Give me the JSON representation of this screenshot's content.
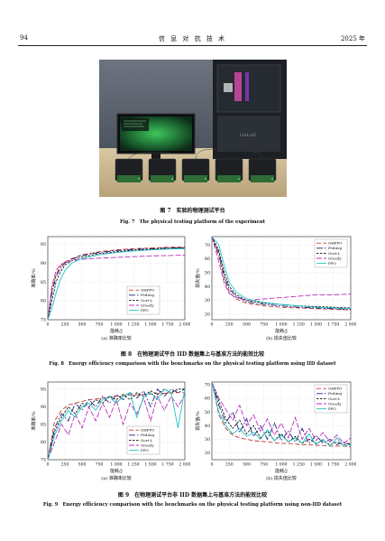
{
  "header": {
    "page_number": "94",
    "journal": "信 息 对 抗 技 术",
    "year": "2025 年"
  },
  "fig7": {
    "caption_zh": "图 7　实验的物理测试平台",
    "caption_en": "Fig. 7　The physical testing platform of the experiment",
    "photo_label": "GALAX"
  },
  "fig8": {
    "caption_zh": "图 8　在物理测试平台 IID 数据集上与基准方法的能效比较",
    "caption_en": "Fig. 8　Energy efficiency comparison with the benchmarks on the physical testing platform using IID dataset",
    "sub_a": "(a) 准确率比较",
    "sub_b": "(b) 损失值比较"
  },
  "fig9": {
    "caption_zh": "图 9　在物理测试平台非 IID 数据集上与基准方法的能效比较",
    "caption_en": "Fig. 9　Energy efficiency comparison with the benchmarks on the physical testing platform using non-IID dataset",
    "sub_a": "(a) 准确率比较",
    "sub_b": "(b) 损失值比较"
  },
  "legend": [
    {
      "name": "GHPPO",
      "color": "#c0392b",
      "dash": "5,2.5"
    },
    {
      "name": "FedAvg",
      "color": "#1a237e",
      "dash": "7,2,1.5,2"
    },
    {
      "name": "Oort-L",
      "color": "#111111",
      "dash": "2.5,1.5"
    },
    {
      "name": "Greedy",
      "color": "#b832b8",
      "dash": "6,2"
    },
    {
      "name": "PPO",
      "color": "#21c4c4",
      "dash": ""
    }
  ],
  "chart_data": [
    {
      "id": "fig8a",
      "type": "line",
      "xlabel": "能耗/J",
      "ylabel": "准确率/%",
      "xlim": [
        0,
        2000
      ],
      "ylim": [
        75,
        97
      ],
      "xticks": [
        "0",
        "250",
        "500",
        "750",
        "1 000",
        "1 250",
        "1 500",
        "1 750",
        "2 000"
      ],
      "yticks": [
        75,
        80,
        85,
        90,
        95
      ],
      "legend_position": "lower-right",
      "x": [
        0,
        60,
        120,
        180,
        250,
        350,
        500,
        750,
        1000,
        1250,
        1500,
        1750,
        2000
      ],
      "series": [
        {
          "name": "GHPPO",
          "values": [
            75,
            83,
            87,
            89,
            90.3,
            91.2,
            92.2,
            93,
            93.5,
            93.8,
            94,
            94.2,
            94.3
          ]
        },
        {
          "name": "FedAvg",
          "values": [
            75,
            82,
            86.5,
            88.5,
            90,
            91,
            92,
            92.8,
            93.3,
            93.6,
            93.8,
            94,
            94.1
          ]
        },
        {
          "name": "Oort-L",
          "values": [
            75,
            80,
            85,
            87.5,
            89.5,
            90.6,
            91.6,
            92.5,
            93,
            93.4,
            93.7,
            93.9,
            94
          ]
        },
        {
          "name": "Greedy",
          "values": [
            75,
            84,
            88,
            89.5,
            90.2,
            90.6,
            91,
            91.3,
            91.5,
            91.7,
            91.9,
            92,
            92.1
          ]
        },
        {
          "name": "PPO",
          "values": [
            75,
            78,
            82,
            85.5,
            88,
            90,
            91.2,
            92.2,
            92.8,
            93.2,
            93.5,
            93.7,
            93.8
          ]
        }
      ]
    },
    {
      "id": "fig8b",
      "type": "line",
      "xlabel": "能耗/J",
      "ylabel": "损失值/%",
      "xlim": [
        0,
        2000
      ],
      "ylim": [
        16,
        76
      ],
      "xticks": [
        "0",
        "250",
        "500",
        "750",
        "1 000",
        "1 250",
        "1 500",
        "1 750",
        "2 000"
      ],
      "yticks": [
        20,
        30,
        40,
        50,
        60,
        70
      ],
      "legend_position": "top-right",
      "x": [
        0,
        100,
        180,
        250,
        350,
        500,
        750,
        1000,
        1250,
        1500,
        1750,
        2000
      ],
      "series": [
        {
          "name": "GHPPO",
          "values": [
            76,
            62,
            45,
            36,
            31,
            28,
            26,
            25,
            24.5,
            24,
            23.5,
            23
          ]
        },
        {
          "name": "FedAvg",
          "values": [
            76,
            64,
            47,
            38,
            33,
            29,
            27,
            26,
            25,
            24.5,
            24,
            23.5
          ]
        },
        {
          "name": "Oort-L",
          "values": [
            76,
            66,
            50,
            40,
            34,
            30,
            28,
            27,
            26,
            25.5,
            25,
            24.5
          ]
        },
        {
          "name": "Greedy",
          "values": [
            76,
            58,
            42,
            35,
            32,
            30,
            31,
            32,
            33,
            34,
            34,
            34.5
          ]
        },
        {
          "name": "PPO",
          "values": [
            76,
            70,
            55,
            43,
            36,
            31,
            28.5,
            27,
            26,
            25,
            24.5,
            24
          ]
        }
      ]
    },
    {
      "id": "fig9a",
      "type": "line",
      "xlabel": "能耗/J",
      "ylabel": "准确率/%",
      "xlim": [
        0,
        2000
      ],
      "ylim": [
        75,
        97
      ],
      "xticks": [
        "0",
        "250",
        "500",
        "750",
        "1 000",
        "1 250",
        "1 500",
        "1 750",
        "2 000"
      ],
      "yticks": [
        75,
        80,
        85,
        90,
        95
      ],
      "legend_position": "lower-right",
      "x": [
        0,
        100,
        200,
        300,
        400,
        500,
        600,
        700,
        800,
        900,
        1000,
        1100,
        1200,
        1300,
        1400,
        1500,
        1600,
        1700,
        1800,
        1900,
        2000
      ],
      "series": [
        {
          "name": "GHPPO",
          "values": [
            75,
            86,
            89,
            90.5,
            91,
            91.5,
            92,
            92.2,
            92.5,
            92.7,
            93,
            93.1,
            93.3,
            93.4,
            93.5,
            93.6,
            93.7,
            93.8,
            93.9,
            94,
            94
          ]
        },
        {
          "name": "FedAvg",
          "values": [
            75,
            84,
            88,
            86,
            91,
            89,
            92,
            90,
            93,
            91,
            93.5,
            92,
            94,
            92.5,
            94.5,
            90,
            95,
            93,
            95,
            94,
            95
          ]
        },
        {
          "name": "Oort-L",
          "values": [
            75,
            83,
            87,
            90,
            88,
            91,
            90,
            92,
            91,
            93,
            92,
            93.5,
            92,
            94,
            93,
            94.5,
            93.5,
            95,
            94,
            95,
            95
          ]
        },
        {
          "name": "Greedy",
          "values": [
            75,
            80,
            85,
            82,
            88,
            84,
            90,
            86,
            91,
            87,
            92,
            85,
            91,
            88,
            92.5,
            86,
            93,
            89,
            93,
            90,
            93.5
          ]
        },
        {
          "name": "PPO",
          "values": [
            75,
            82,
            86,
            89,
            87,
            90,
            91,
            89,
            92,
            93,
            91,
            93,
            94,
            87,
            93,
            94,
            92,
            95,
            94,
            84,
            95
          ]
        }
      ]
    },
    {
      "id": "fig9b",
      "type": "line",
      "xlabel": "能耗/J",
      "ylabel": "损失值/%",
      "xlim": [
        0,
        2000
      ],
      "ylim": [
        15,
        72
      ],
      "xticks": [
        "0",
        "250",
        "500",
        "750",
        "1 000",
        "1 250",
        "1 500",
        "1 750",
        "2 000"
      ],
      "yticks": [
        20,
        30,
        40,
        50,
        60,
        70
      ],
      "legend_position": "top-right",
      "x": [
        0,
        100,
        200,
        300,
        400,
        500,
        600,
        700,
        800,
        900,
        1000,
        1100,
        1200,
        1300,
        1400,
        1500,
        1600,
        1700,
        1800,
        1900,
        2000
      ],
      "series": [
        {
          "name": "GHPPO",
          "values": [
            72,
            48,
            38,
            33,
            31,
            30,
            29,
            28.5,
            28,
            27.5,
            27,
            27,
            26.5,
            26,
            26,
            25.5,
            25.5,
            25,
            25,
            25,
            24.5
          ]
        },
        {
          "name": "FedAvg",
          "values": [
            72,
            55,
            42,
            50,
            35,
            45,
            32,
            40,
            30,
            42,
            29,
            36,
            28,
            38,
            27,
            33,
            27,
            30,
            26,
            28,
            26
          ]
        },
        {
          "name": "Oort-L",
          "values": [
            72,
            58,
            45,
            38,
            44,
            34,
            40,
            31,
            36,
            29,
            34,
            28,
            32,
            27,
            30,
            27,
            29,
            26,
            28,
            26,
            27
          ]
        },
        {
          "name": "Greedy",
          "values": [
            72,
            60,
            52,
            44,
            55,
            40,
            48,
            36,
            45,
            33,
            42,
            31,
            46,
            30,
            38,
            29,
            35,
            28,
            33,
            27,
            31
          ]
        },
        {
          "name": "PPO",
          "values": [
            72,
            50,
            40,
            34,
            38,
            32,
            35,
            30,
            37,
            29,
            33,
            28,
            31,
            27,
            34,
            26,
            30,
            25,
            31,
            25,
            26
          ]
        }
      ]
    }
  ]
}
